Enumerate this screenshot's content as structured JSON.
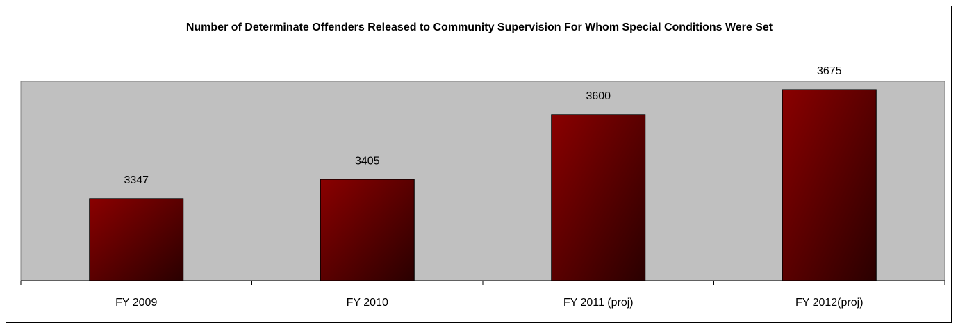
{
  "chart_data": {
    "type": "bar",
    "title": "Number of Determinate Offenders Released to Community Supervision For Whom Special Conditions Were Set",
    "categories": [
      "FY 2009",
      "FY 2010",
      "FY 2011 (proj)",
      "FY 2012(proj)"
    ],
    "values": [
      3347,
      3405,
      3600,
      3675
    ],
    "color": "#800000",
    "ylim": [
      3100,
      3700
    ]
  }
}
